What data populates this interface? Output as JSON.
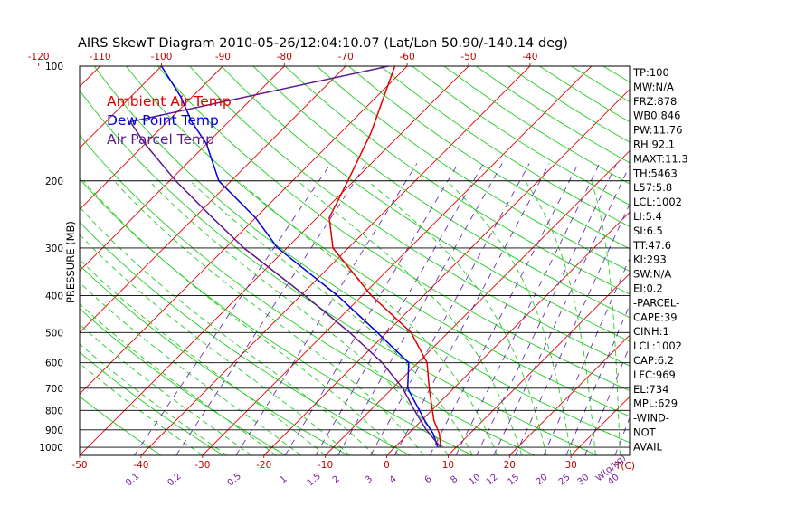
{
  "chart_data": {
    "type": "line",
    "title": "AIRS SkewT Diagram 2010-05-26/12:04:10.07 (Lat/Lon 50.90/-140.14 deg)",
    "ylabel": "PRESSURE (MB)",
    "x_unit_label": "T(C)",
    "mixing_unit_label": "W(g/kg)",
    "ylim": [
      1050,
      100
    ],
    "y_scale": "log",
    "pressure_ticks": [
      "100",
      "200",
      "300",
      "400",
      "500",
      "600",
      "700",
      "800",
      "900",
      "1000"
    ],
    "top_ticks": [
      "-120",
      "-110",
      "-100",
      "-90",
      "-80",
      "-70",
      "-60",
      "-50",
      "-40"
    ],
    "bottom_ticks": [
      "-50",
      "-40",
      "-30",
      "-20",
      "-10",
      "0",
      "10",
      "20",
      "30"
    ],
    "mixing_ticks": [
      "0.1",
      "0.2",
      "0.5",
      "1",
      "1.5",
      "2",
      "3",
      "4",
      "6",
      "8",
      "10",
      "12",
      "15",
      "20",
      "25",
      "30",
      "40"
    ],
    "legend": [
      {
        "label": "Ambient Air Temp",
        "color": "#e00000"
      },
      {
        "label": "Dew Point Temp",
        "color": "#0000e0"
      },
      {
        "label": "Air Parcel Temp",
        "color": "#5a1a8c"
      }
    ],
    "series": [
      {
        "name": "Ambient Air Temp",
        "color": "#e00000",
        "points": [
          {
            "p": 1000,
            "t": 7.5
          },
          {
            "p": 920,
            "t": 5.0
          },
          {
            "p": 850,
            "t": 2.0
          },
          {
            "p": 700,
            "t": -4.0
          },
          {
            "p": 600,
            "t": -8.5
          },
          {
            "p": 500,
            "t": -16.0
          },
          {
            "p": 400,
            "t": -28.5
          },
          {
            "p": 300,
            "t": -42.5
          },
          {
            "p": 250,
            "t": -48.0
          },
          {
            "p": 200,
            "t": -51.0
          },
          {
            "p": 150,
            "t": -55.0
          },
          {
            "p": 100,
            "t": -62.0
          }
        ]
      },
      {
        "name": "Dew Point Temp",
        "color": "#0000e0",
        "points": [
          {
            "p": 1000,
            "t": 7.0
          },
          {
            "p": 920,
            "t": 4.0
          },
          {
            "p": 850,
            "t": 0.5
          },
          {
            "p": 700,
            "t": -7.5
          },
          {
            "p": 600,
            "t": -11.5
          },
          {
            "p": 500,
            "t": -21.5
          },
          {
            "p": 400,
            "t": -34.0
          },
          {
            "p": 300,
            "t": -51.5
          },
          {
            "p": 250,
            "t": -60.0
          },
          {
            "p": 200,
            "t": -72.0
          },
          {
            "p": 160,
            "t": -80.0
          },
          {
            "p": 140,
            "t": -86.0
          },
          {
            "p": 120,
            "t": -92.0
          },
          {
            "p": 100,
            "t": -100.0
          }
        ]
      },
      {
        "name": "Air Parcel Temp",
        "color": "#5a1a8c",
        "points": [
          {
            "p": 1000,
            "t": 7.5
          },
          {
            "p": 900,
            "t": 2.3
          },
          {
            "p": 800,
            "t": -2.8
          },
          {
            "p": 700,
            "t": -8.3
          },
          {
            "p": 600,
            "t": -15.8
          },
          {
            "p": 500,
            "t": -26.0
          },
          {
            "p": 400,
            "t": -39.3
          },
          {
            "p": 300,
            "t": -57.0
          },
          {
            "p": 250,
            "t": -67.0
          },
          {
            "p": 200,
            "t": -79.0
          },
          {
            "p": 160,
            "t": -90.0
          },
          {
            "p": 140,
            "t": -96.0
          },
          {
            "p": 100,
            "t": -63.0
          }
        ]
      }
    ],
    "indices": [
      "TP:100",
      "MW:N/A",
      "FRZ:878",
      "WB0:846",
      "PW:11.76",
      "RH:92.1",
      "MAXT:11.3",
      "TH:5463",
      "L57:5.8",
      "LCL:1002",
      "LI:5.4",
      "SI:6.5",
      "TT:47.6",
      "KI:293",
      "SW:N/A",
      "EI:0.2",
      "-PARCEL-",
      "CAPE:39",
      "CINH:1",
      "LCL:1002",
      "CAP:6.2",
      "LFC:969",
      "EL:734",
      "MPL:629",
      "-WIND-",
      "NOT",
      "AVAIL"
    ]
  }
}
